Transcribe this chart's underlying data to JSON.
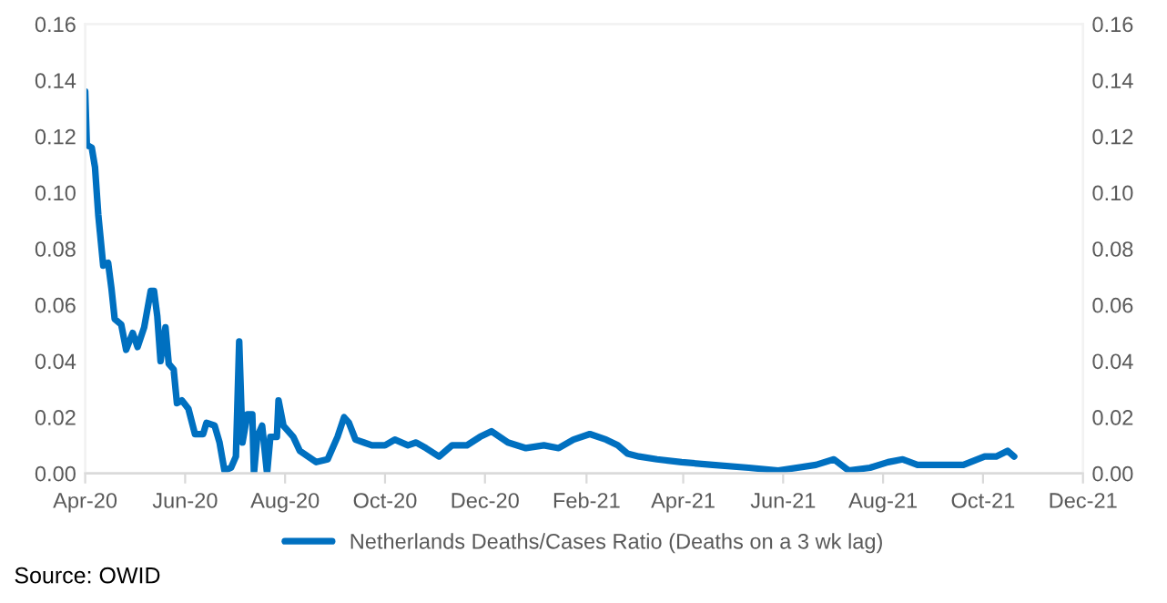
{
  "chart_data": {
    "type": "line",
    "x": [
      "2020-04-01",
      "2020-04-02",
      "2020-04-05",
      "2020-04-07",
      "2020-04-09",
      "2020-04-12",
      "2020-04-15",
      "2020-04-17",
      "2020-04-19",
      "2020-04-23",
      "2020-04-26",
      "2020-04-30",
      "2020-05-03",
      "2020-05-07",
      "2020-05-11",
      "2020-05-13",
      "2020-05-15",
      "2020-05-17",
      "2020-05-20",
      "2020-05-22",
      "2020-05-25",
      "2020-05-27",
      "2020-05-30",
      "2020-06-03",
      "2020-06-07",
      "2020-06-12",
      "2020-06-14",
      "2020-06-19",
      "2020-06-22",
      "2020-06-25",
      "2020-06-29",
      "2020-07-02",
      "2020-07-04",
      "2020-07-06",
      "2020-07-09",
      "2020-07-12",
      "2020-07-13",
      "2020-07-15",
      "2020-07-18",
      "2020-07-21",
      "2020-07-23",
      "2020-07-27",
      "2020-07-28",
      "2020-07-31",
      "2020-08-06",
      "2020-08-10",
      "2020-08-20",
      "2020-08-27",
      "2020-09-02",
      "2020-09-06",
      "2020-09-09",
      "2020-09-13",
      "2020-09-18",
      "2020-09-23",
      "2020-10-01",
      "2020-10-07",
      "2020-10-15",
      "2020-10-20",
      "2020-10-26",
      "2020-11-03",
      "2020-11-11",
      "2020-11-20",
      "2020-11-28",
      "2020-12-05",
      "2020-12-15",
      "2020-12-26",
      "2021-01-06",
      "2021-01-15",
      "2021-01-24",
      "2021-02-03",
      "2021-02-13",
      "2021-02-20",
      "2021-02-26",
      "2021-03-05",
      "2021-03-16",
      "2021-03-31",
      "2021-04-19",
      "2021-05-11",
      "2021-05-29",
      "2021-06-21",
      "2021-07-02",
      "2021-07-11",
      "2021-07-24",
      "2021-08-04",
      "2021-08-13",
      "2021-08-22",
      "2021-09-06",
      "2021-09-19",
      "2021-10-02",
      "2021-10-09",
      "2021-10-16",
      "2021-10-20"
    ],
    "series": [
      {
        "name": "Netherlands Deaths/Cases Ratio (Deaths on a 3 wk lag)",
        "color": "#0070c0",
        "values": [
          0.136,
          0.117,
          0.116,
          0.109,
          0.092,
          0.074,
          0.075,
          0.066,
          0.055,
          0.053,
          0.044,
          0.05,
          0.045,
          0.052,
          0.065,
          0.065,
          0.056,
          0.04,
          0.052,
          0.039,
          0.037,
          0.025,
          0.026,
          0.023,
          0.014,
          0.014,
          0.018,
          0.017,
          0.011,
          0.001,
          0.002,
          0.006,
          0.047,
          0.011,
          0.021,
          0.021,
          0.0,
          0.013,
          0.017,
          0.0,
          0.013,
          0.013,
          0.026,
          0.017,
          0.013,
          0.008,
          0.004,
          0.005,
          0.013,
          0.02,
          0.018,
          0.012,
          0.011,
          0.01,
          0.01,
          0.012,
          0.01,
          0.011,
          0.009,
          0.006,
          0.01,
          0.01,
          0.013,
          0.015,
          0.011,
          0.009,
          0.01,
          0.009,
          0.012,
          0.014,
          0.012,
          0.01,
          0.007,
          0.006,
          0.005,
          0.004,
          0.003,
          0.002,
          0.001,
          0.003,
          0.005,
          0.001,
          0.002,
          0.004,
          0.005,
          0.003,
          0.003,
          0.003,
          0.006,
          0.006,
          0.008,
          0.006
        ]
      }
    ],
    "xlim": [
      "2020-04-01",
      "2021-12-01"
    ],
    "xticks": [
      {
        "value": "2020-04-01",
        "label": "Apr-20"
      },
      {
        "value": "2020-06-01",
        "label": "Jun-20"
      },
      {
        "value": "2020-08-01",
        "label": "Aug-20"
      },
      {
        "value": "2020-10-01",
        "label": "Oct-20"
      },
      {
        "value": "2020-12-01",
        "label": "Dec-20"
      },
      {
        "value": "2021-02-01",
        "label": "Feb-21"
      },
      {
        "value": "2021-04-01",
        "label": "Apr-21"
      },
      {
        "value": "2021-06-01",
        "label": "Jun-21"
      },
      {
        "value": "2021-08-01",
        "label": "Aug-21"
      },
      {
        "value": "2021-10-01",
        "label": "Oct-21"
      },
      {
        "value": "2021-12-01",
        "label": "Dec-21"
      }
    ],
    "ylim": [
      0,
      0.16
    ],
    "yticks": [
      {
        "value": 0,
        "label": "0.00"
      },
      {
        "value": 0.02,
        "label": "0.02"
      },
      {
        "value": 0.04,
        "label": "0.04"
      },
      {
        "value": 0.06,
        "label": "0.06"
      },
      {
        "value": 0.08,
        "label": "0.08"
      },
      {
        "value": 0.1,
        "label": "0.10"
      },
      {
        "value": 0.12,
        "label": "0.12"
      },
      {
        "value": 0.14,
        "label": "0.14"
      },
      {
        "value": 0.16,
        "label": "0.16"
      }
    ],
    "y2lim": [
      0,
      0.16
    ],
    "y2ticks": [
      {
        "value": 0,
        "label": "0.00"
      },
      {
        "value": 0.02,
        "label": "0.02"
      },
      {
        "value": 0.04,
        "label": "0.04"
      },
      {
        "value": 0.06,
        "label": "0.06"
      },
      {
        "value": 0.08,
        "label": "0.08"
      },
      {
        "value": 0.1,
        "label": "0.10"
      },
      {
        "value": 0.12,
        "label": "0.12"
      },
      {
        "value": 0.14,
        "label": "0.14"
      },
      {
        "value": 0.16,
        "label": "0.16"
      }
    ],
    "legend": "bottom",
    "line_style": "solid",
    "annotations": [
      "Source: OWID"
    ]
  }
}
